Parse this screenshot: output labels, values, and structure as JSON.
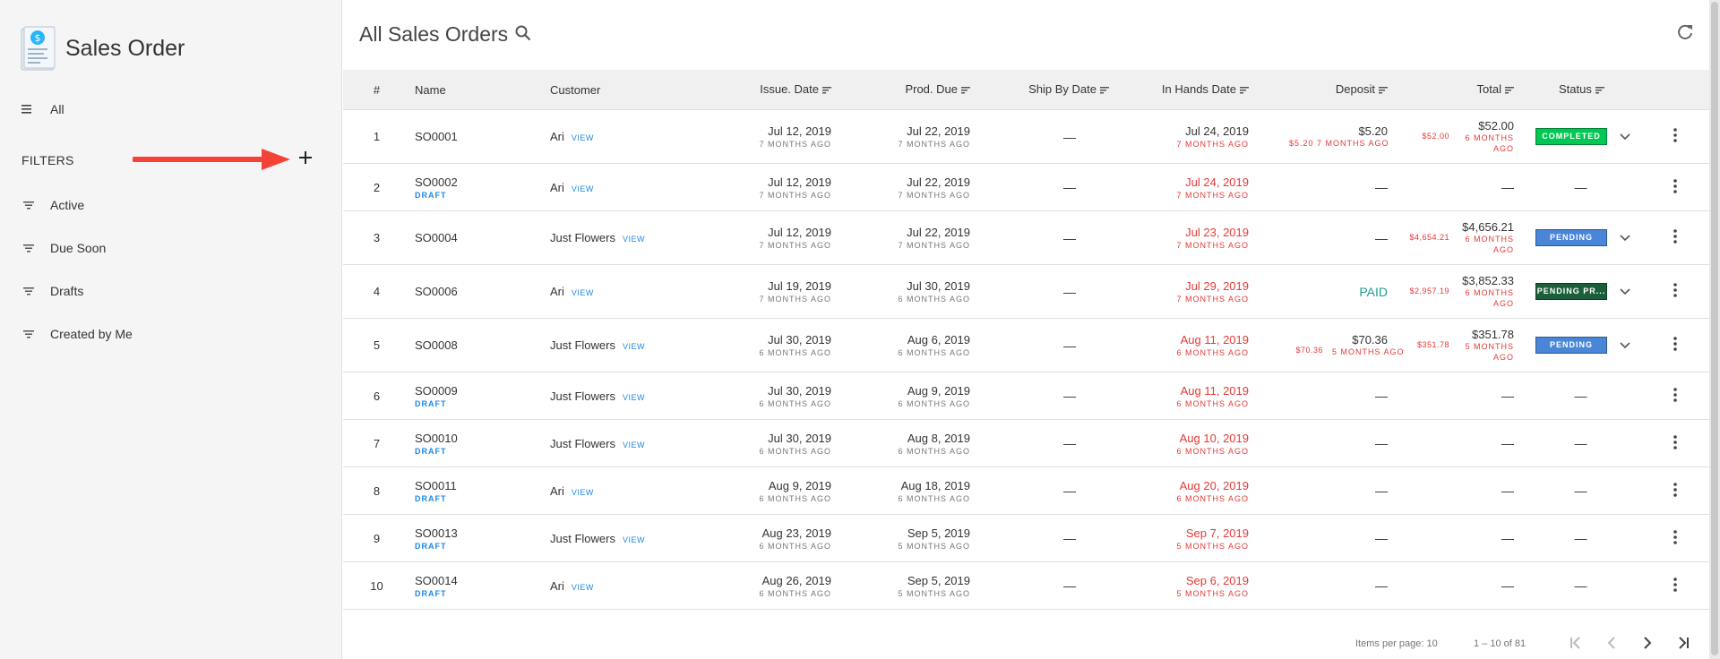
{
  "sidebar": {
    "title": "Sales Order",
    "all_label": "All",
    "filters_label": "FILTERS",
    "filters": [
      {
        "label": "Active"
      },
      {
        "label": "Due Soon"
      },
      {
        "label": "Drafts"
      },
      {
        "label": "Created by Me"
      }
    ]
  },
  "header": {
    "title": "All Sales Orders"
  },
  "table": {
    "columns": {
      "num": "#",
      "name": "Name",
      "customer": "Customer",
      "issue_date": "Issue. Date",
      "prod_due": "Prod. Due",
      "ship_by": "Ship By Date",
      "in_hands": "In Hands Date",
      "deposit": "Deposit",
      "total": "Total",
      "status": "Status"
    },
    "view_label": "VIEW",
    "draft_label": "DRAFT",
    "rows": [
      {
        "num": "1",
        "name": "SO0001",
        "draft": false,
        "customer": "Ari",
        "issue": "Jul 12, 2019",
        "issue_ago": "7 MONTHS AGO",
        "prod": "Jul 22, 2019",
        "prod_ago": "7 MONTHS AGO",
        "ship": "—",
        "hands": "Jul 24, 2019",
        "hands_ago": "7 MONTHS AGO",
        "hands_late": false,
        "deposit": {
          "side": "",
          "main": "$5.20",
          "sub": "$5.20 7 MONTHS AGO"
        },
        "total": {
          "side": "$52.00",
          "main": "$52.00",
          "sub": "6 MONTHS AGO"
        },
        "status": "COMPLETED",
        "status_color": "#00c853",
        "has_chevron": true
      },
      {
        "num": "2",
        "name": "SO0002",
        "draft": true,
        "customer": "Ari",
        "issue": "Jul 12, 2019",
        "issue_ago": "7 MONTHS AGO",
        "prod": "Jul 22, 2019",
        "prod_ago": "7 MONTHS AGO",
        "ship": "—",
        "hands": "Jul 24, 2019",
        "hands_ago": "7 MONTHS AGO",
        "hands_late": true,
        "deposit": {
          "dash": "—"
        },
        "total": {
          "dash": "—"
        },
        "status": "",
        "status_dash": "—",
        "has_chevron": false
      },
      {
        "num": "3",
        "name": "SO0004",
        "draft": false,
        "customer": "Just Flowers",
        "issue": "Jul 12, 2019",
        "issue_ago": "7 MONTHS AGO",
        "prod": "Jul 22, 2019",
        "prod_ago": "7 MONTHS AGO",
        "ship": "—",
        "hands": "Jul 23, 2019",
        "hands_ago": "7 MONTHS AGO",
        "hands_late": true,
        "deposit": {
          "dash": "—"
        },
        "total": {
          "side": "$4,654.21",
          "main": "$4,656.21",
          "sub": "6 MONTHS AGO"
        },
        "status": "PENDING",
        "status_color": "#4a86d8",
        "has_chevron": true
      },
      {
        "num": "4",
        "name": "SO0006",
        "draft": false,
        "customer": "Ari",
        "issue": "Jul 19, 2019",
        "issue_ago": "7 MONTHS AGO",
        "prod": "Jul 30, 2019",
        "prod_ago": "6 MONTHS AGO",
        "ship": "—",
        "hands": "Jul 29, 2019",
        "hands_ago": "7 MONTHS AGO",
        "hands_late": true,
        "deposit": {
          "paid": "PAID"
        },
        "total": {
          "side": "$2,957.19",
          "main": "$3,852.33",
          "sub": "6 MONTHS AGO"
        },
        "status": "PENDING PR...",
        "status_color": "#1b5e3a",
        "has_chevron": true
      },
      {
        "num": "5",
        "name": "SO0008",
        "draft": false,
        "customer": "Just Flowers",
        "issue": "Jul 30, 2019",
        "issue_ago": "6 MONTHS AGO",
        "prod": "Aug 6, 2019",
        "prod_ago": "6 MONTHS AGO",
        "ship": "—",
        "hands": "Aug 11, 2019",
        "hands_ago": "6 MONTHS AGO",
        "hands_late": true,
        "deposit": {
          "side": "$70.36",
          "main": "$70.36",
          "sub": "5 MONTHS AGO"
        },
        "total": {
          "side": "$351.78",
          "main": "$351.78",
          "sub": "5 MONTHS AGO"
        },
        "status": "PENDING",
        "status_color": "#4a86d8",
        "has_chevron": true
      },
      {
        "num": "6",
        "name": "SO0009",
        "draft": true,
        "customer": "Just Flowers",
        "issue": "Jul 30, 2019",
        "issue_ago": "6 MONTHS AGO",
        "prod": "Aug 9, 2019",
        "prod_ago": "6 MONTHS AGO",
        "ship": "—",
        "hands": "Aug 11, 2019",
        "hands_ago": "6 MONTHS AGO",
        "hands_late": true,
        "deposit": {
          "dash": "—"
        },
        "total": {
          "dash": "—"
        },
        "status": "",
        "status_dash": "—",
        "has_chevron": false
      },
      {
        "num": "7",
        "name": "SO0010",
        "draft": true,
        "customer": "Just Flowers",
        "issue": "Jul 30, 2019",
        "issue_ago": "6 MONTHS AGO",
        "prod": "Aug 8, 2019",
        "prod_ago": "6 MONTHS AGO",
        "ship": "—",
        "hands": "Aug 10, 2019",
        "hands_ago": "6 MONTHS AGO",
        "hands_late": true,
        "deposit": {
          "dash": "—"
        },
        "total": {
          "dash": "—"
        },
        "status": "",
        "status_dash": "—",
        "has_chevron": false
      },
      {
        "num": "8",
        "name": "SO0011",
        "draft": true,
        "customer": "Ari",
        "issue": "Aug 9, 2019",
        "issue_ago": "6 MONTHS AGO",
        "prod": "Aug 18, 2019",
        "prod_ago": "6 MONTHS AGO",
        "ship": "—",
        "hands": "Aug 20, 2019",
        "hands_ago": "6 MONTHS AGO",
        "hands_late": true,
        "deposit": {
          "dash": "—"
        },
        "total": {
          "dash": "—"
        },
        "status": "",
        "status_dash": "—",
        "has_chevron": false
      },
      {
        "num": "9",
        "name": "SO0013",
        "draft": true,
        "customer": "Just Flowers",
        "issue": "Aug 23, 2019",
        "issue_ago": "6 MONTHS AGO",
        "prod": "Sep 5, 2019",
        "prod_ago": "5 MONTHS AGO",
        "ship": "—",
        "hands": "Sep 7, 2019",
        "hands_ago": "5 MONTHS AGO",
        "hands_late": true,
        "deposit": {
          "dash": "—"
        },
        "total": {
          "dash": "—"
        },
        "status": "",
        "status_dash": "—",
        "has_chevron": false
      },
      {
        "num": "10",
        "name": "SO0014",
        "draft": true,
        "customer": "Ari",
        "issue": "Aug 26, 2019",
        "issue_ago": "6 MONTHS AGO",
        "prod": "Sep 5, 2019",
        "prod_ago": "5 MONTHS AGO",
        "ship": "—",
        "hands": "Sep 6, 2019",
        "hands_ago": "5 MONTHS AGO",
        "hands_late": true,
        "deposit": {
          "dash": "—"
        },
        "total": {
          "dash": "—"
        },
        "status": "",
        "status_dash": "—",
        "has_chevron": false
      }
    ]
  },
  "pagination": {
    "items_per_page_label": "Items per page: 10",
    "range_label": "1 – 10 of 81"
  },
  "colors": {
    "accent_blue": "#1e88e5",
    "late_red": "#e53935",
    "paid_teal": "#1e9c8a",
    "arrow_red": "#f44336"
  },
  "icons": [
    "sales-order-logo-icon",
    "list-icon",
    "filter-icon",
    "plus-icon",
    "search-icon",
    "refresh-icon",
    "sort-icon",
    "chevron-down-icon",
    "more-vert-icon",
    "first-page-icon",
    "prev-page-icon",
    "next-page-icon",
    "last-page-icon"
  ]
}
